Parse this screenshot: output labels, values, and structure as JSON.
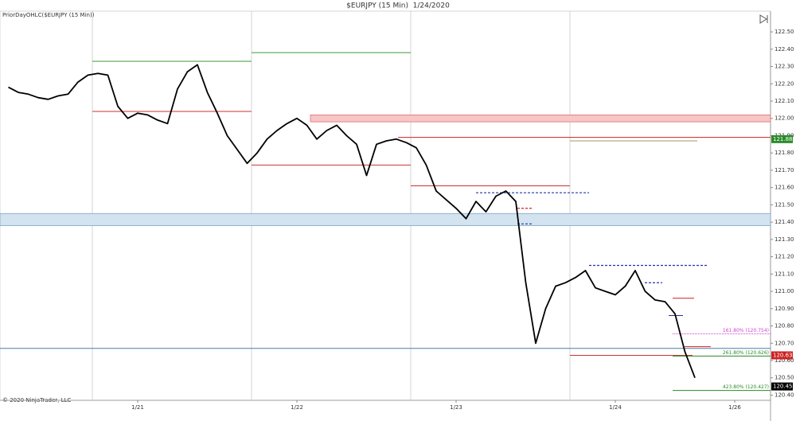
{
  "chart_data": {
    "type": "line",
    "title": "$EURJPY (15 Min)  1/24/2020",
    "subtitle": "PriorDayOHLC($EURJPY (15 Min))",
    "footer": "© 2020 NinjaTrader, LLC",
    "color": "#000000",
    "categories": [
      null,
      null,
      null,
      null,
      null,
      null,
      null,
      null,
      null,
      null,
      null,
      null,
      null,
      "1/21",
      null,
      null,
      null,
      null,
      null,
      null,
      null,
      null,
      null,
      null,
      null,
      null,
      null,
      null,
      null,
      "1/22",
      null,
      null,
      null,
      null,
      null,
      null,
      null,
      null,
      null,
      null,
      null,
      null,
      null,
      null,
      null,
      "1/23",
      null,
      null,
      null,
      null,
      null,
      null,
      null,
      null,
      null,
      null,
      null,
      null,
      null,
      null,
      null,
      "1/24",
      null,
      null,
      null,
      null,
      null,
      null,
      null,
      null,
      null,
      null,
      null,
      "1/26"
    ],
    "values": [
      122.18,
      122.15,
      122.14,
      122.12,
      122.11,
      122.13,
      122.14,
      122.21,
      122.25,
      122.26,
      122.25,
      122.07,
      122.0,
      122.03,
      122.02,
      121.99,
      121.97,
      122.17,
      122.27,
      122.31,
      122.15,
      122.03,
      121.9,
      121.82,
      121.74,
      121.8,
      121.88,
      121.93,
      121.97,
      122.0,
      121.96,
      121.88,
      121.93,
      121.96,
      121.9,
      121.85,
      121.67,
      121.85,
      121.87,
      121.88,
      121.86,
      121.83,
      121.73,
      121.58,
      121.53,
      121.48,
      121.42,
      121.52,
      121.46,
      121.55,
      121.58,
      121.52,
      121.05,
      120.7,
      120.9,
      121.03,
      121.05,
      121.08,
      121.12,
      121.02,
      121.0,
      120.98,
      121.03,
      121.12,
      121.0,
      120.95,
      120.94,
      120.87,
      120.65,
      120.5,
      null,
      null,
      null,
      null
    ],
    "ylim": [
      120.37,
      122.62
    ],
    "yticks": [
      {
        "value": 120.4,
        "label": "120.40"
      },
      {
        "value": 120.5,
        "label": "120.50"
      },
      {
        "value": 120.6,
        "label": "120.60"
      },
      {
        "value": 120.7,
        "label": "120.70"
      },
      {
        "value": 120.8,
        "label": "120.80"
      },
      {
        "value": 120.9,
        "label": "120.90"
      },
      {
        "value": 121.0,
        "label": "121.00"
      },
      {
        "value": 121.1,
        "label": "121.10"
      },
      {
        "value": 121.2,
        "label": "121.20"
      },
      {
        "value": 121.3,
        "label": "121.30"
      },
      {
        "value": 121.4,
        "label": "121.40"
      },
      {
        "value": 121.5,
        "label": "121.50"
      },
      {
        "value": 121.6,
        "label": "121.60"
      },
      {
        "value": 121.7,
        "label": "121.70"
      },
      {
        "value": 121.8,
        "label": "121.80"
      },
      {
        "value": 121.9,
        "label": "121.90"
      },
      {
        "value": 122.0,
        "label": "122.00"
      },
      {
        "value": 122.1,
        "label": "122.10"
      },
      {
        "value": 122.2,
        "label": "122.20"
      },
      {
        "value": 122.3,
        "label": "122.30"
      },
      {
        "value": 122.4,
        "label": "122.40"
      },
      {
        "value": 122.5,
        "label": "122.50"
      }
    ],
    "zones": [
      {
        "from": 121.98,
        "to": 122.02,
        "color": "#f7c6c6",
        "border": "#e07070"
      },
      {
        "from": 121.38,
        "to": 121.45,
        "color": "#d3e3ef",
        "border": "#7da6c8"
      }
    ],
    "levels": [
      {
        "price": 122.33,
        "color": "#3a9a3a",
        "style": "solid"
      },
      {
        "price": 122.04,
        "color": "#cc3333",
        "style": "solid"
      },
      {
        "price": 122.38,
        "color": "#3a9a3a",
        "style": "solid"
      },
      {
        "price": 121.73,
        "color": "#cc3333",
        "style": "solid"
      },
      {
        "price": 121.61,
        "color": "#cc3333",
        "style": "solid"
      },
      {
        "price": 121.87,
        "color": "#999966",
        "style": "solid"
      },
      {
        "price": 120.63,
        "color": "#cc3333",
        "style": "solid"
      },
      {
        "price": 121.89,
        "color": "#cc2222",
        "style": "solid"
      },
      {
        "price": 120.67,
        "color": "#4a7fa8",
        "style": "solid"
      },
      {
        "price": 121.57,
        "color": "#2233aa",
        "style": "dashed"
      },
      {
        "price": 121.39,
        "color": "#2233aa",
        "style": "dashed"
      },
      {
        "price": 121.15,
        "color": "#2233aa",
        "style": "dashed"
      },
      {
        "price": 121.05,
        "color": "#2233aa",
        "style": "dashed"
      },
      {
        "price": 120.86,
        "color": "#2233aa",
        "style": "solid"
      },
      {
        "price": 121.48,
        "color": "#cc2222",
        "style": "dashed"
      },
      {
        "price": 120.96,
        "color": "#cc2222",
        "style": "solid"
      },
      {
        "price": 120.68,
        "color": "#cc2222",
        "style": "solid"
      }
    ],
    "fib_levels": [
      {
        "value": 120.754,
        "label": "161.80% (120.754)",
        "color": "#cc44cc"
      },
      {
        "value": 120.626,
        "label": "261.80% (120.626)",
        "color": "#2a8a2a"
      },
      {
        "value": 120.427,
        "label": "423.80% (120.427)",
        "color": "#2a8a2a"
      }
    ],
    "price_tags": [
      {
        "value": 121.88,
        "label": "121.880",
        "color": "#2a8a2a"
      },
      {
        "value": 120.63,
        "label": "120.630",
        "color": "#cc2222"
      },
      {
        "value": 120.45,
        "label": "120.45",
        "color": "#000000"
      }
    ]
  }
}
